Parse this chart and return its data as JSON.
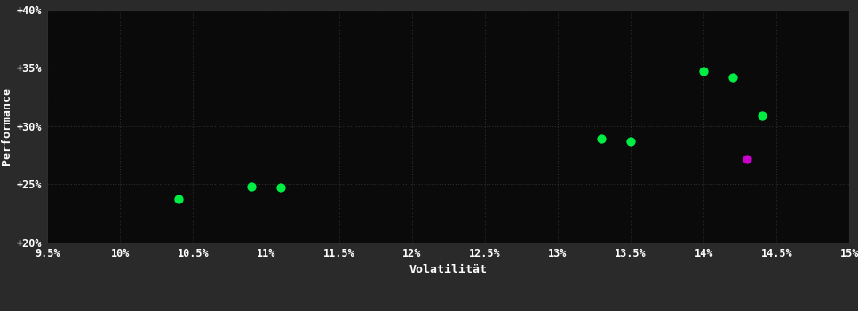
{
  "background_color": "#2a2a2a",
  "plot_bg_color": "#0a0a0a",
  "grid_color": "#2d2d2d",
  "xlabel": "Volatilität",
  "ylabel": "Performance",
  "xlim": [
    0.095,
    0.15
  ],
  "ylim": [
    0.2,
    0.4
  ],
  "xticks": [
    0.095,
    0.1,
    0.105,
    0.11,
    0.115,
    0.12,
    0.125,
    0.13,
    0.135,
    0.14,
    0.145,
    0.15
  ],
  "xtick_labels": [
    "9.5%",
    "10%",
    "10.5%",
    "11%",
    "11.5%",
    "12%",
    "12.5%",
    "13%",
    "13.5%",
    "14%",
    "14.5%",
    "15%"
  ],
  "yticks": [
    0.2,
    0.25,
    0.3,
    0.35,
    0.4
  ],
  "ytick_labels": [
    "+20%",
    "+25%",
    "+30%",
    "+35%",
    "+40%"
  ],
  "points_green": [
    [
      0.104,
      0.237
    ],
    [
      0.109,
      0.248
    ],
    [
      0.111,
      0.247
    ],
    [
      0.133,
      0.289
    ],
    [
      0.135,
      0.287
    ],
    [
      0.14,
      0.347
    ],
    [
      0.142,
      0.342
    ],
    [
      0.144,
      0.309
    ]
  ],
  "points_magenta": [
    [
      0.143,
      0.272
    ]
  ],
  "point_size": 55,
  "font_color": "#ffffff",
  "font_size_ticks": 8.5,
  "font_size_labels": 9.5,
  "font_family": "monospace"
}
